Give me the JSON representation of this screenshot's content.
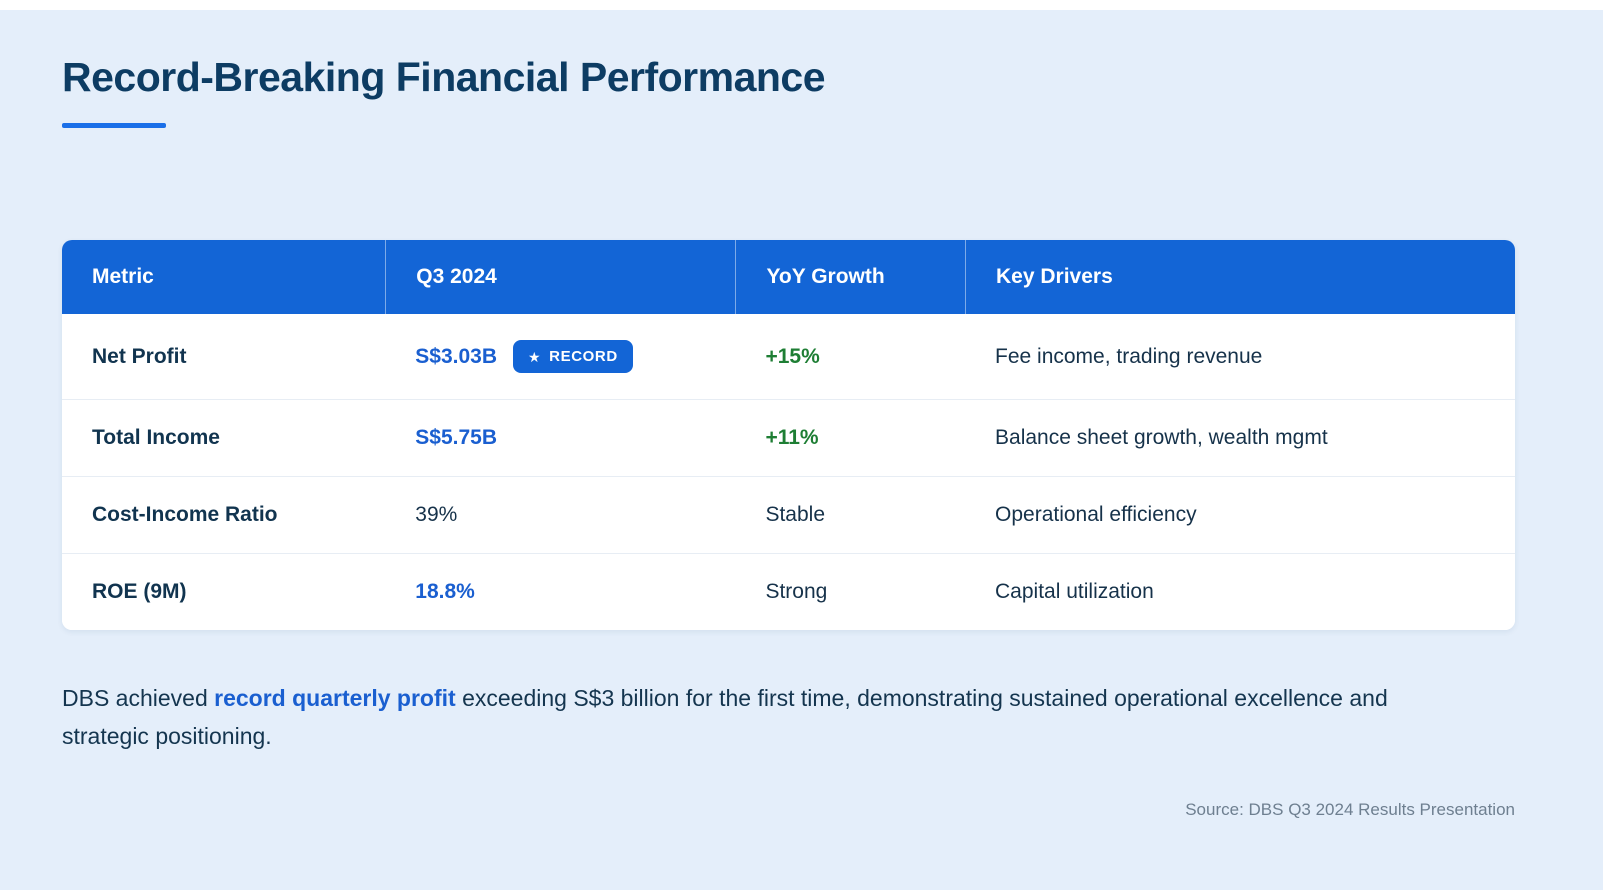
{
  "page": {
    "title": "Record-Breaking Financial Performance",
    "source": "Source: DBS Q3 2024 Results Presentation"
  },
  "table": {
    "headers": [
      "Metric",
      "Q3 2024",
      "YoY Growth",
      "Key Drivers"
    ],
    "rows": [
      {
        "metric": "Net Profit",
        "value": "S$3.03B",
        "badge": "RECORD",
        "badge_icon": "star-icon",
        "growth": "+15%",
        "drivers": "Fee income, trading revenue"
      },
      {
        "metric": "Total Income",
        "value": "S$5.75B",
        "growth": "+11%",
        "drivers": "Balance sheet growth, wealth mgmt"
      },
      {
        "metric": "Cost-Income Ratio",
        "value": "39%",
        "growth": "Stable",
        "drivers": "Operational efficiency"
      },
      {
        "metric": "ROE (9M)",
        "value": "18.8%",
        "growth": "Strong",
        "drivers": "Capital utilization"
      }
    ]
  },
  "badge": {
    "star": "★"
  },
  "summary": {
    "prefix": "DBS achieved ",
    "highlight": "record quarterly profit",
    "suffix": " exceeding S$3 billion for the first time, demonstrating sustained operational excellence and strategic positioning."
  },
  "colors": {
    "background": "#e4eefa",
    "header_blue": "#1365d6",
    "accent_blue": "#1a5fd0",
    "underline_blue": "#1a6fe8",
    "title_navy": "#0d3c63",
    "growth_green": "#1e7e34",
    "text_dark": "#16324a",
    "source_gray": "#6e7f90"
  }
}
